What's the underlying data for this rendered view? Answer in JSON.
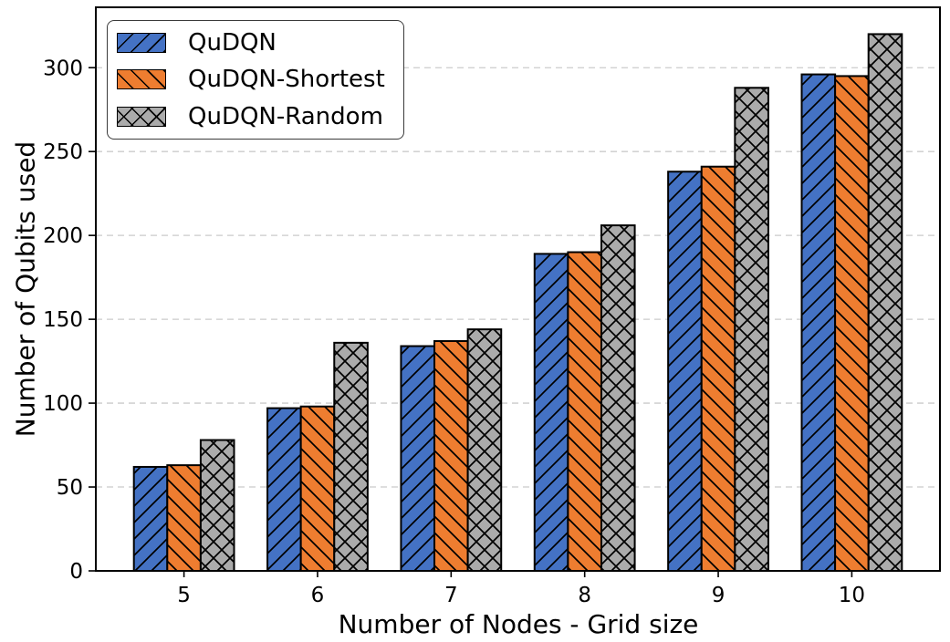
{
  "chart_data": {
    "type": "bar",
    "categories": [
      "5",
      "6",
      "7",
      "8",
      "9",
      "10"
    ],
    "series": [
      {
        "name": "QuDQN",
        "color": "#4472C4",
        "hatch": "/",
        "values": [
          62,
          97,
          134,
          189,
          238,
          296
        ]
      },
      {
        "name": "QuDQN-Shortest",
        "color": "#EE7D30",
        "hatch": "\\",
        "values": [
          63,
          98,
          137,
          190,
          241,
          295
        ]
      },
      {
        "name": "QuDQN-Random",
        "color": "#ABABAB",
        "hatch": "x",
        "values": [
          78,
          136,
          144,
          206,
          288,
          320
        ]
      }
    ],
    "xlabel": "Number of Nodes - Grid size",
    "ylabel": "Number of Qubits used",
    "ylim": [
      0,
      336
    ],
    "yticks": [
      0,
      50,
      100,
      150,
      200,
      250,
      300
    ],
    "grid": "horizontal-dashed",
    "grid_color": "#cbcbcb",
    "bar_edge_color": "#000000",
    "legend_position": "upper-left"
  }
}
